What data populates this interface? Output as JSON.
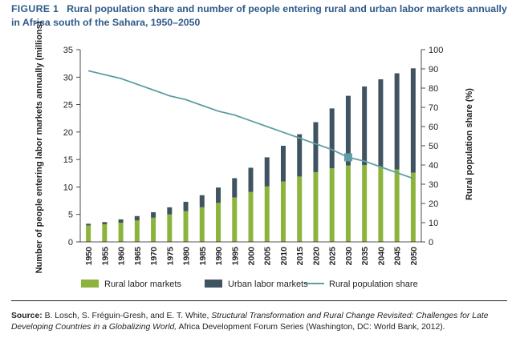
{
  "figure": {
    "label": "FIGURE 1",
    "title": "Rural population share and number of people entering rural and urban labor markets annually in Africa south of the Sahara, 1950–2050"
  },
  "colors": {
    "rural": "#8cb43c",
    "urban": "#3f5460",
    "line": "#5d9ea3",
    "text": "#231f20",
    "title": "#2e5a8a"
  },
  "chart_data": {
    "type": "bar",
    "stacked": true,
    "secondary_type": "line",
    "categories": [
      "1950",
      "1955",
      "1960",
      "1965",
      "1970",
      "1975",
      "1980",
      "1985",
      "1990",
      "1995",
      "2000",
      "2005",
      "2010",
      "2015",
      "2020",
      "2025",
      "2030",
      "2035",
      "2040",
      "2045",
      "2050"
    ],
    "series": [
      {
        "name": "Rural labor markets",
        "axis": "left",
        "values": [
          3.0,
          3.2,
          3.5,
          3.9,
          4.4,
          5.0,
          5.6,
          6.3,
          7.1,
          8.1,
          9.1,
          10.1,
          11.0,
          11.9,
          12.7,
          13.4,
          13.9,
          14.0,
          13.6,
          13.2,
          12.6
        ]
      },
      {
        "name": "Urban labor markets",
        "axis": "left",
        "values": [
          0.3,
          0.4,
          0.6,
          0.8,
          1.0,
          1.3,
          1.7,
          2.2,
          2.8,
          3.5,
          4.4,
          5.3,
          6.5,
          7.7,
          9.1,
          10.9,
          12.7,
          14.3,
          16.0,
          17.5,
          19.0
        ]
      },
      {
        "name": "Rural population share",
        "axis": "right",
        "type": "line",
        "values": [
          89,
          87,
          85,
          82,
          79,
          76,
          74,
          71,
          68,
          66,
          63,
          60,
          57,
          54,
          51,
          48,
          44,
          42,
          39,
          36,
          33
        ]
      }
    ],
    "ylabel": "Number of people entering labor markets annually (millions)",
    "ylim": [
      0,
      35
    ],
    "yticks": [
      0,
      5,
      10,
      15,
      20,
      25,
      30,
      35
    ],
    "y2label": "Rural population share (%)",
    "y2lim": [
      0,
      100
    ],
    "y2ticks": [
      0,
      10,
      20,
      30,
      40,
      50,
      60,
      70,
      80,
      90,
      100
    ],
    "highlight": {
      "series": "Rural population share",
      "category": "2030"
    },
    "legend": [
      "Rural labor markets",
      "Urban labor markets",
      "Rural population share"
    ],
    "legend_position": "bottom",
    "grid": false
  },
  "source": {
    "label": "Source:",
    "authors": "B. Losch, S. Fréguin-Gresh, and E. T. White,",
    "work": "Structural Transformation and Rural Change Revisited: Challenges for Late Developing Countries in a Globalizing World,",
    "rest": "Africa Development Forum Series (Washington, DC: World Bank, 2012)."
  }
}
